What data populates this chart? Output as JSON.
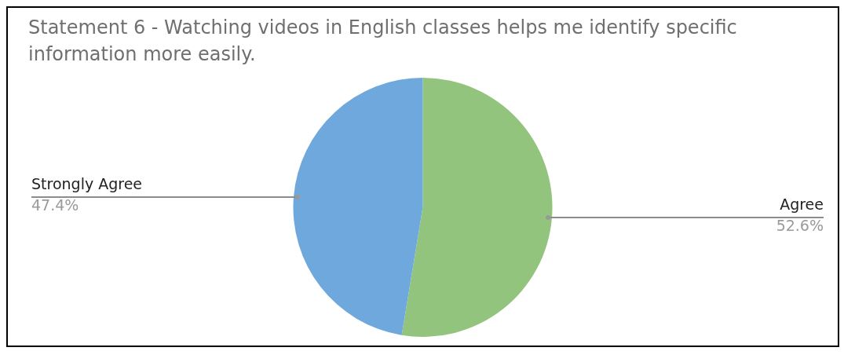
{
  "chart_data": {
    "type": "pie",
    "title": "Statement 6 -  Watching videos in English classes helps me identify specific information more easily.",
    "categories": [
      "Agree",
      "Strongly Agree"
    ],
    "values": [
      52.6,
      47.4
    ],
    "colors": [
      "#93c47d",
      "#6fa8dc"
    ],
    "value_labels": [
      "52.6%",
      "47.4%"
    ],
    "legend": false
  }
}
